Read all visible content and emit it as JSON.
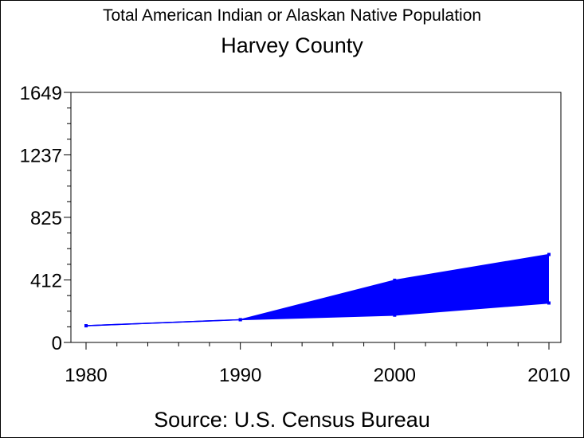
{
  "chart_data": {
    "type": "area",
    "title": "Total American Indian or Alaskan Native Population",
    "subtitle": "Harvey County",
    "source": "Source: U.S. Census Bureau",
    "x": [
      1980,
      1990,
      2000,
      2010
    ],
    "x_tick_labels": [
      "1980",
      "1990",
      "2000",
      "2010"
    ],
    "y_tick_values": [
      0,
      412,
      825,
      1237,
      1649
    ],
    "y_tick_labels": [
      "0",
      "412",
      "825",
      "1237",
      "1649"
    ],
    "ylim": [
      0,
      1649
    ],
    "xlim": [
      1980,
      2010
    ],
    "series": [
      {
        "values": [
          110,
          150,
          410,
          580
        ]
      },
      {
        "values": [
          110,
          150,
          180,
          260
        ]
      }
    ],
    "fill_color": "#0000ff",
    "line_color": "#0000ff",
    "grid": false
  }
}
